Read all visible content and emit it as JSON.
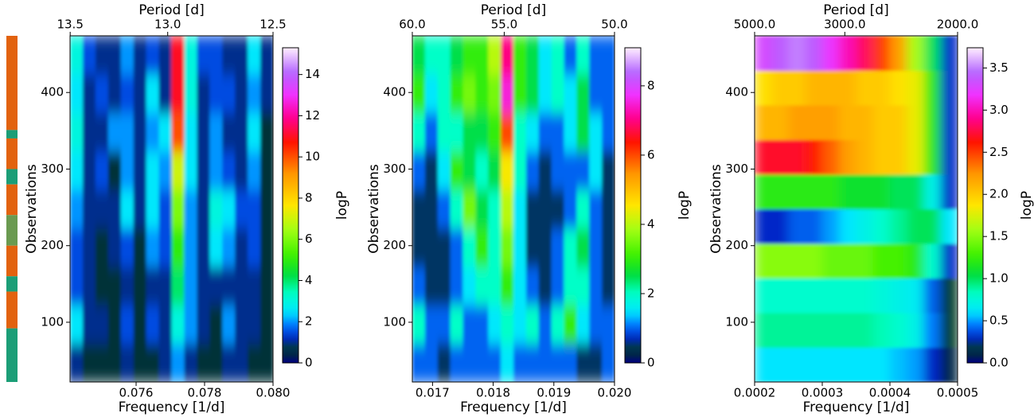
{
  "chart_data": [
    {
      "type": "heatmap",
      "colormap": "gist_ncar",
      "x_label": "Frequency [1/d]",
      "y_label": "Observations",
      "top_label": "Period [d]",
      "colorbar_label": "logP",
      "xlim": [
        0.07407,
        0.08
      ],
      "ylim": [
        22,
        474
      ],
      "clim": [
        0,
        15.3
      ],
      "xticks": [
        0.076,
        0.078,
        {
          "value": 0.08,
          "label": "0.080"
        }
      ],
      "top_xticks": [
        13.5,
        {
          "value": 13,
          "label": "13.0"
        },
        12.5
      ],
      "yticks": [
        100,
        200,
        300,
        400
      ],
      "cticks": [
        0,
        2,
        4,
        6,
        8,
        10,
        12,
        14
      ],
      "z": [
        [
          1,
          0.5,
          0.5,
          0.5,
          1,
          0.5,
          0.5,
          1,
          2,
          1,
          0.5,
          0.5,
          1,
          1,
          0.5,
          0.5
        ],
        [
          2.5,
          1,
          1,
          0.5,
          1.5,
          0.5,
          1.5,
          1,
          3,
          2,
          1,
          0.5,
          2,
          1,
          1,
          0.5
        ],
        [
          1.5,
          1,
          0.5,
          0.5,
          1,
          0.5,
          1,
          1,
          4,
          2,
          1,
          1,
          1,
          1,
          1,
          0.5
        ],
        [
          1.5,
          1,
          0.5,
          1,
          1.5,
          0.5,
          2,
          1.5,
          5,
          2,
          1,
          2.5,
          2,
          1,
          1.5,
          0.5
        ],
        [
          2,
          1,
          1,
          1,
          2.5,
          1,
          2.5,
          1.5,
          6,
          2,
          1,
          3,
          2.5,
          1.5,
          1.5,
          0.5
        ],
        [
          2.5,
          1,
          1.5,
          0.5,
          2,
          1,
          2.5,
          2,
          7,
          2.5,
          1,
          2,
          1.5,
          1,
          2,
          0.5
        ],
        [
          3,
          1,
          1,
          2,
          2,
          1,
          2,
          2.5,
          10,
          2.5,
          1,
          2,
          1,
          1,
          2.5,
          0.5
        ],
        [
          2.5,
          1,
          1.5,
          1,
          1.5,
          1,
          2.5,
          1,
          11,
          3,
          1,
          1.5,
          1.5,
          1,
          2,
          1
        ],
        [
          3,
          1.5,
          1,
          1,
          2,
          1,
          1.5,
          1,
          11,
          3,
          1.5,
          1.5,
          1,
          1,
          2.5,
          1
        ]
      ],
      "side_strip": [
        {
          "start": 351,
          "end": 474,
          "color": "#e2620e"
        },
        {
          "start": 340,
          "end": 351,
          "color": "#1b9e77"
        },
        {
          "start": 300,
          "end": 340,
          "color": "#e2620e"
        },
        {
          "start": 280,
          "end": 300,
          "color": "#1b9e77"
        },
        {
          "start": 240,
          "end": 280,
          "color": "#e2620e"
        },
        {
          "start": 200,
          "end": 240,
          "color": "#6a9a50"
        },
        {
          "start": 160,
          "end": 200,
          "color": "#e2620e"
        },
        {
          "start": 140,
          "end": 160,
          "color": "#1b9e77"
        },
        {
          "start": 92,
          "end": 140,
          "color": "#e2620e"
        },
        {
          "start": 22,
          "end": 92,
          "color": "#1b9e77"
        }
      ]
    },
    {
      "type": "heatmap",
      "colormap": "gist_ncar",
      "x_label": "Frequency [1/d]",
      "y_label": "Observations",
      "top_label": "Period [d]",
      "colorbar_label": "logP",
      "xlim": [
        0.016667,
        0.02
      ],
      "ylim": [
        22,
        474
      ],
      "clim": [
        0,
        9.1
      ],
      "xticks": [
        0.017,
        0.018,
        0.019,
        {
          "value": 0.02,
          "label": "0.020"
        }
      ],
      "top_xticks": [
        {
          "value": 60,
          "label": "60.0"
        },
        {
          "value": 55,
          "label": "55.0"
        },
        {
          "value": 50,
          "label": "50.0"
        }
      ],
      "yticks": [
        100,
        200,
        300,
        400
      ],
      "cticks": [
        0,
        2,
        4,
        6,
        8
      ],
      "z": [
        [
          1,
          1,
          0.5,
          1,
          1,
          1,
          1,
          1.5,
          1,
          1,
          1,
          1,
          1,
          0.5,
          0.5,
          1
        ],
        [
          2,
          1,
          1,
          2,
          1,
          1,
          1.5,
          2,
          1.5,
          2,
          1,
          2,
          3,
          1.5,
          1,
          1
        ],
        [
          1,
          0.5,
          0.5,
          1,
          1.5,
          2,
          2,
          3,
          1.5,
          1,
          0.5,
          1,
          2,
          2,
          1,
          0.5
        ],
        [
          0.5,
          0.5,
          0.5,
          1,
          2,
          3,
          2,
          3.5,
          1.5,
          0.5,
          0.5,
          1,
          2,
          2.5,
          1,
          0.5
        ],
        [
          0.5,
          0.5,
          1,
          2,
          3.5,
          2.5,
          2,
          4,
          1.5,
          0.5,
          0.5,
          0.5,
          1,
          2,
          1,
          0.5
        ],
        [
          1,
          0.5,
          1.5,
          3,
          2.5,
          2,
          2.5,
          4.5,
          2,
          1,
          0.5,
          1,
          1,
          1,
          1.5,
          0.5
        ],
        [
          2,
          1,
          2,
          2,
          2.5,
          2.5,
          3,
          6,
          2,
          1.5,
          1,
          1,
          1.5,
          2.5,
          1.5,
          1
        ],
        [
          3,
          1.5,
          2,
          3,
          3.5,
          3,
          3.5,
          7.5,
          3,
          2.5,
          1.5,
          2,
          1.5,
          2.5,
          1,
          1
        ],
        [
          2.5,
          2,
          2,
          2.5,
          3,
          3,
          4,
          7,
          3,
          2.5,
          1.5,
          2,
          1,
          2,
          1,
          1
        ]
      ]
    },
    {
      "type": "heatmap",
      "colormap": "gist_ncar",
      "x_label": "Frequency [1/d]",
      "y_label": "Observations",
      "top_label": "Period [d]",
      "colorbar_label": "logP",
      "xlim": [
        0.0002,
        0.0005
      ],
      "ylim": [
        22,
        474
      ],
      "clim": [
        0,
        3.74
      ],
      "xticks": [
        0.0002,
        0.0003,
        0.0004,
        0.0005
      ],
      "top_xticks": [
        {
          "value": 5000,
          "label": "5000.0"
        },
        {
          "value": 3000,
          "label": "3000.0"
        },
        {
          "value": 2000,
          "label": "2000.0"
        }
      ],
      "yticks": [
        100,
        200,
        300,
        400
      ],
      "cticks": [
        {
          "value": 0,
          "label": "0.0"
        },
        0.5,
        {
          "value": 1,
          "label": "1.0"
        },
        1.5,
        {
          "value": 2,
          "label": "2.0"
        },
        2.5,
        {
          "value": 3,
          "label": "3.0"
        },
        3.5
      ],
      "z": [
        [
          0.6,
          0.6,
          0.6,
          0.6,
          0.6,
          0.6,
          0.6,
          0.6,
          0.55,
          0.5,
          0.3,
          0.1
        ],
        [
          0.9,
          0.9,
          0.9,
          0.9,
          0.9,
          0.9,
          0.9,
          0.85,
          0.8,
          0.7,
          0.45,
          0.15
        ],
        [
          0.8,
          0.8,
          0.8,
          0.8,
          0.8,
          0.8,
          0.8,
          0.75,
          0.7,
          0.65,
          0.4,
          0.15
        ],
        [
          1.5,
          1.5,
          1.5,
          1.5,
          1.4,
          1.4,
          1.4,
          1.3,
          1.3,
          1.2,
          0.8,
          0.3
        ],
        [
          0.3,
          0.3,
          0.4,
          0.4,
          0.5,
          0.6,
          0.7,
          0.8,
          0.9,
          1,
          1,
          0.6
        ],
        [
          1.2,
          1.2,
          1.2,
          1.2,
          1.2,
          1.1,
          1.1,
          1.1,
          1,
          1,
          0.7,
          0.3
        ],
        [
          2.7,
          2.7,
          2.7,
          2.6,
          2.4,
          2.2,
          2.1,
          2,
          2,
          1.8,
          1.2,
          0.3
        ],
        [
          2.1,
          2.1,
          2.2,
          2.2,
          2.2,
          2.1,
          2.1,
          2,
          2,
          1.8,
          1.2,
          0.3
        ],
        [
          1.9,
          2,
          2,
          2.1,
          2.1,
          2.1,
          2,
          2,
          1.9,
          1.8,
          1.2,
          0.3
        ],
        [
          3.3,
          3.4,
          3.5,
          3.4,
          3.2,
          3,
          2.8,
          2.5,
          2.2,
          1.6,
          1,
          0.3
        ]
      ]
    }
  ]
}
